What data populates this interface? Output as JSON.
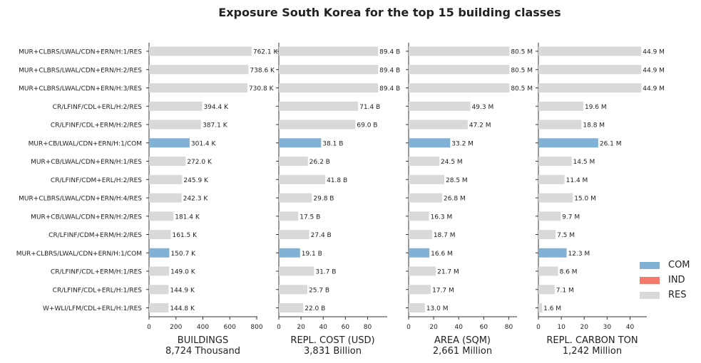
{
  "chart_data": {
    "type": "bar",
    "orientation": "horizontal",
    "title": "Exposure South Korea for the top 15 building classes",
    "categories": [
      "MUR+CLBRS/LWAL/CDN+ERN/H:1/RES",
      "MUR+CLBRS/LWAL/CDN+ERN/H:2/RES",
      "MUR+CLBRS/LWAL/CDN+ERN/H:3/RES",
      "CR/LFINF/CDL+ERL/H:2/RES",
      "CR/LFINF/CDL+ERM/H:2/RES",
      "MUR+CB/LWAL/CDN+ERN/H:1/COM",
      "MUR+CB/LWAL/CDN+ERN/H:1/RES",
      "CR/LFINF/CDM+ERL/H:2/RES",
      "MUR+CLBRS/LWAL/CDN+ERN/H:4/RES",
      "MUR+CB/LWAL/CDN+ERN/H:2/RES",
      "CR/LFINF/CDM+ERM/H:2/RES",
      "MUR+CLBRS/LWAL/CDN+ERN/H:1/COM",
      "CR/LFINF/CDL+ERM/H:1/RES",
      "CR/LFINF/CDL+ERL/H:1/RES",
      "W+WLI/LFM/CDL+ERL/H:1/RES"
    ],
    "occupancy": [
      "RES",
      "RES",
      "RES",
      "RES",
      "RES",
      "COM",
      "RES",
      "RES",
      "RES",
      "RES",
      "RES",
      "COM",
      "RES",
      "RES",
      "RES"
    ],
    "colors": {
      "COM": "#82b1d6",
      "IND": "#f47b6c",
      "RES": "#d9d9d9"
    },
    "legend": {
      "entries": [
        "COM",
        "IND",
        "RES"
      ],
      "placement": "lower-right"
    },
    "grid": false,
    "panels": [
      {
        "xlabel": "BUILDINGS",
        "total": "8,724 Thousand",
        "xlim": [
          0,
          800
        ],
        "xticks": [
          0,
          200,
          400,
          600,
          800
        ],
        "values": [
          762.1,
          738.6,
          730.8,
          394.4,
          387.1,
          301.4,
          272.0,
          245.9,
          242.3,
          181.4,
          161.5,
          150.7,
          149.0,
          144.9,
          144.8
        ],
        "labels": [
          "762.1 K",
          "738.6 K",
          "730.8 K",
          "394.4 K",
          "387.1 K",
          "301.4 K",
          "272.0 K",
          "245.9 K",
          "242.3 K",
          "181.4 K",
          "161.5 K",
          "150.7 K",
          "149.0 K",
          "144.9 K",
          "144.8 K"
        ]
      },
      {
        "xlabel": "REPL. COST (USD)",
        "total": "3,831 Billion",
        "xlim": [
          0,
          97
        ],
        "xticks": [
          0,
          20,
          40,
          60,
          80
        ],
        "values": [
          89.4,
          89.4,
          89.4,
          71.4,
          69.0,
          38.1,
          26.2,
          41.8,
          29.8,
          17.5,
          27.4,
          19.1,
          31.7,
          25.7,
          22.0
        ],
        "labels": [
          "89.4 B",
          "89.4 B",
          "89.4 B",
          "71.4 B",
          "69.0 B",
          "38.1 B",
          "26.2 B",
          "41.8 B",
          "29.8 B",
          "17.5 B",
          "27.4 B",
          "19.1 B",
          "31.7 B",
          "25.7 B",
          "22.0 B"
        ]
      },
      {
        "xlabel": "AREA (SQM)",
        "total": "2,661 Million",
        "xlim": [
          0,
          86
        ],
        "xticks": [
          0,
          20,
          40,
          60,
          80
        ],
        "values": [
          80.5,
          80.5,
          80.5,
          49.3,
          47.2,
          33.2,
          24.5,
          28.5,
          26.8,
          16.3,
          18.7,
          16.6,
          21.7,
          17.7,
          13.0
        ],
        "labels": [
          "80.5 M",
          "80.5 M",
          "80.5 M",
          "49.3 M",
          "47.2 M",
          "33.2 M",
          "24.5 M",
          "28.5 M",
          "26.8 M",
          "16.3 M",
          "18.7 M",
          "16.6 M",
          "21.7 M",
          "17.7 M",
          "13.0 M"
        ]
      },
      {
        "xlabel": "REPL. CARBON TON",
        "total": "1,242 Million",
        "xlim": [
          0,
          47
        ],
        "xticks": [
          0,
          10,
          20,
          30,
          40
        ],
        "values": [
          44.9,
          44.9,
          44.9,
          19.6,
          18.8,
          26.1,
          14.5,
          11.4,
          15.0,
          9.7,
          7.5,
          12.3,
          8.6,
          7.1,
          1.6
        ],
        "labels": [
          "44.9 M",
          "44.9 M",
          "44.9 M",
          "19.6 M",
          "18.8 M",
          "26.1 M",
          "14.5 M",
          "11.4 M",
          "15.0 M",
          "9.7 M",
          "7.5 M",
          "12.3 M",
          "8.6 M",
          "7.1 M",
          "1.6 M"
        ]
      }
    ]
  }
}
